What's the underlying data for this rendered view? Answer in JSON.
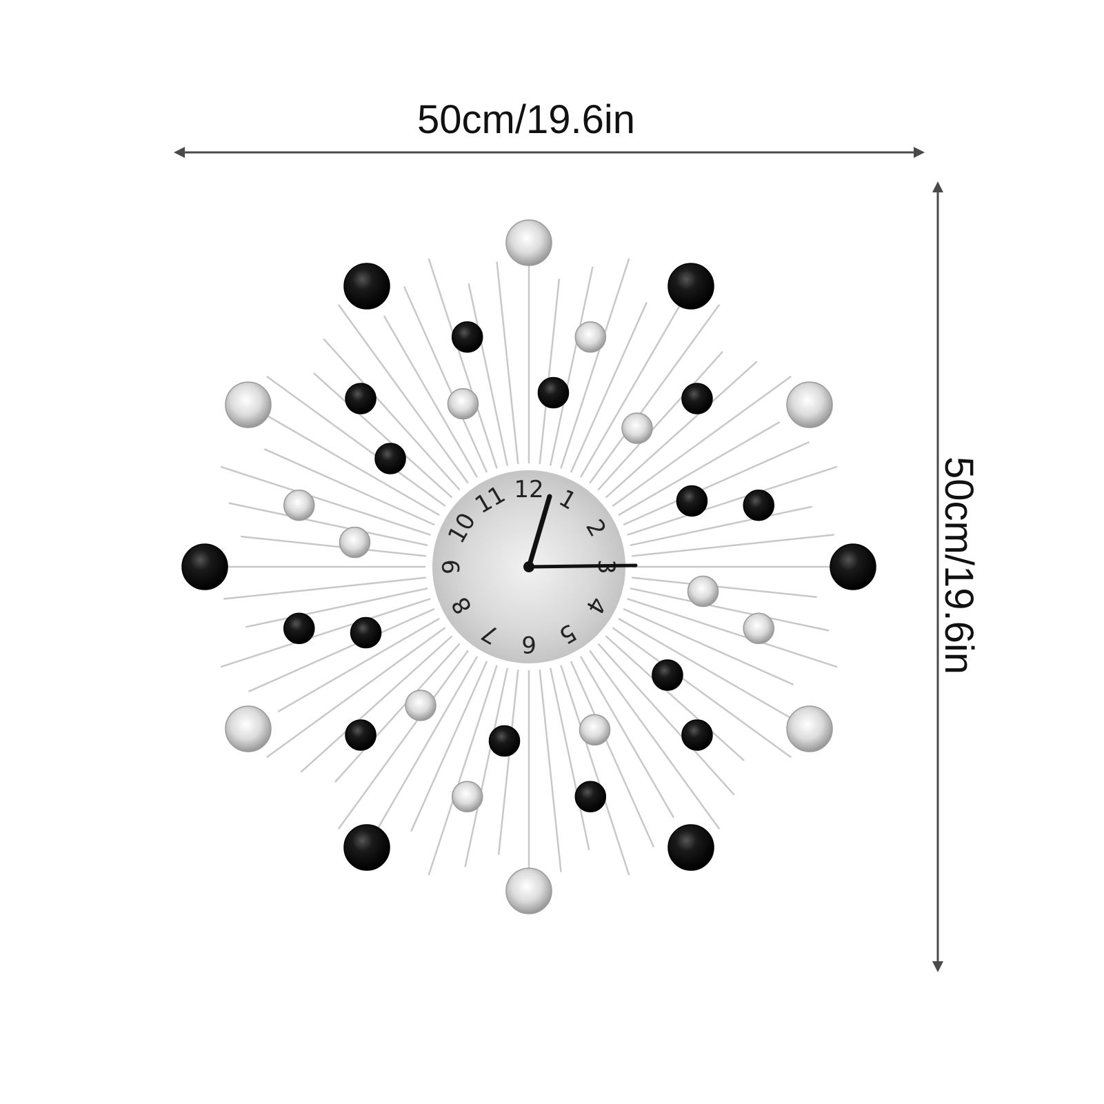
{
  "dimensions": {
    "width_label": "50cm/19.6in",
    "height_label": "50cm/19.6in"
  },
  "clock": {
    "numerals": [
      "12",
      "1",
      "2",
      "3",
      "4",
      "5",
      "6",
      "7",
      "8",
      "9",
      "10",
      "11"
    ],
    "time_shown": "1:15",
    "colors": {
      "arrow": "#4a4a4a",
      "spoke": "#c8c8c8",
      "black_gem": "#0a0a0a",
      "clear_gem": "#e4e4e4",
      "dial": "#d9d9d9",
      "hands": "#111111"
    }
  }
}
